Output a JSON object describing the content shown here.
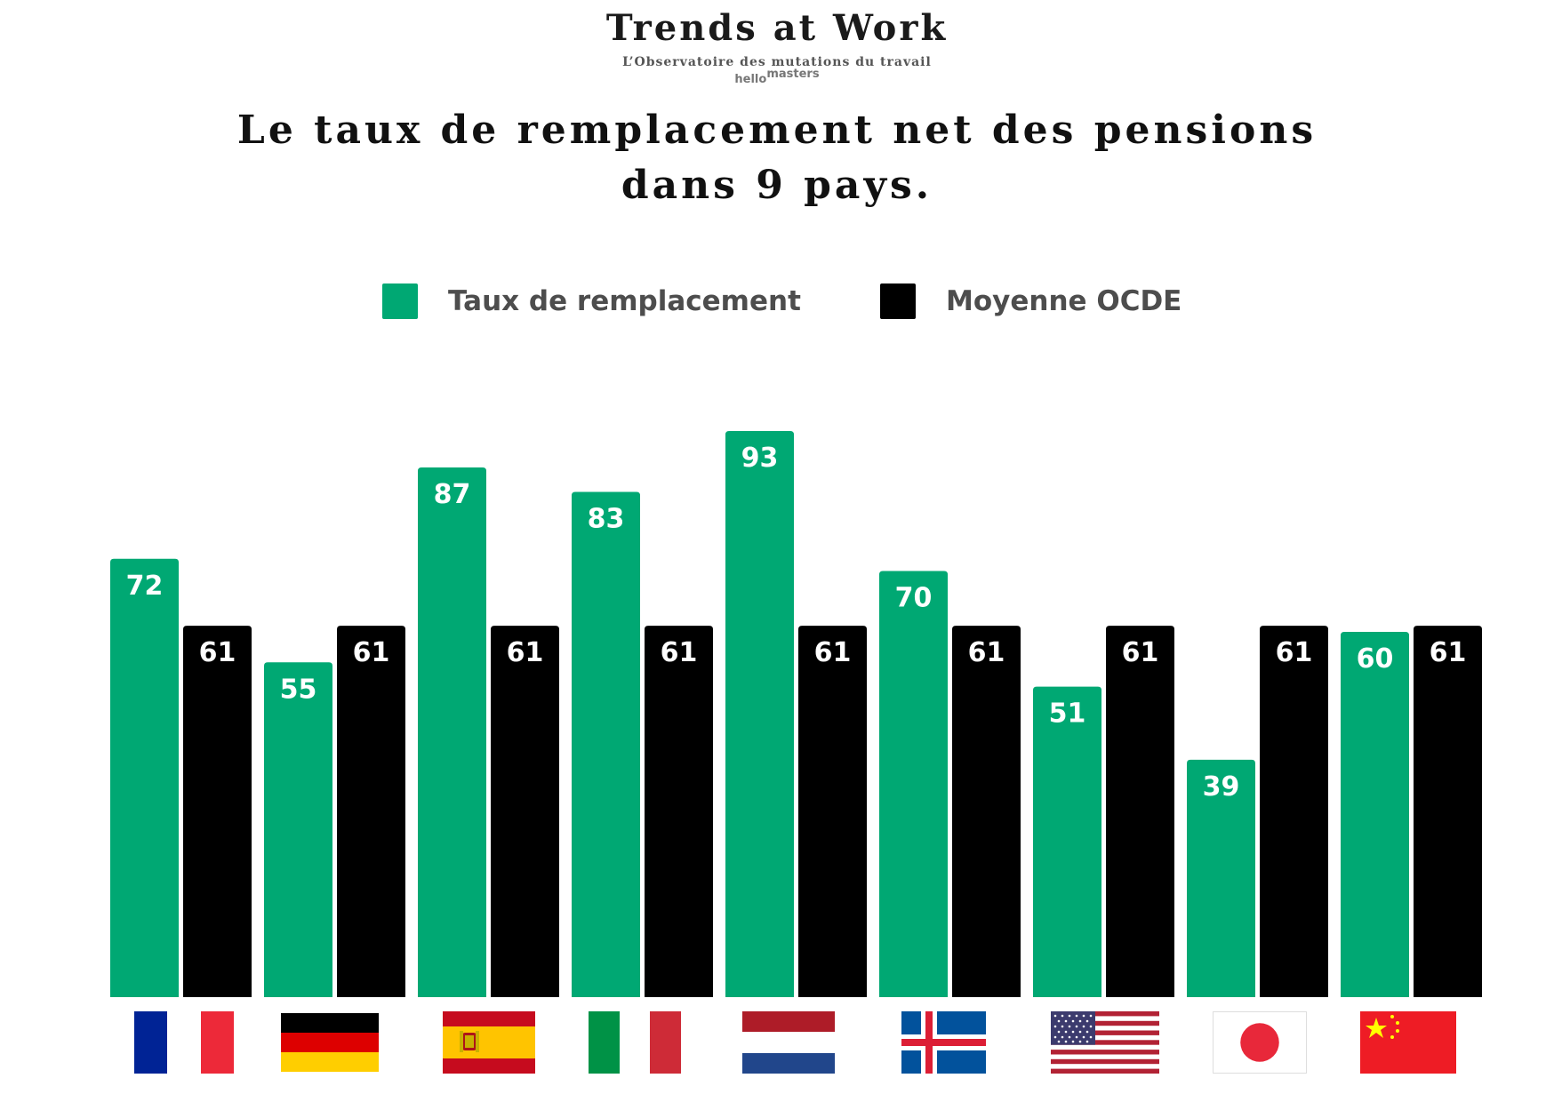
{
  "header": {
    "brand_title": "Trends at Work",
    "brand_subtitle": "L’Observatoire des mutations du travail",
    "logo_text_main": "hello",
    "logo_text_sup": "masters",
    "title_line1": "Le taux de remplacement net des pensions",
    "title_line2": "dans 9 pays."
  },
  "colors": {
    "green": "#00a873",
    "black": "#000000"
  },
  "chart_data": {
    "type": "bar",
    "title": "Le taux de remplacement net des pensions dans 9 pays.",
    "xlabel": "",
    "ylabel": "",
    "ylim": [
      0,
      100
    ],
    "grid": false,
    "legend_position": "top-center",
    "categories": [
      "france-flag",
      "germany-flag",
      "spain-flag",
      "italy-flag",
      "netherlands-flag",
      "iceland-flag",
      "usa-flag",
      "japan-flag",
      "china-flag"
    ],
    "series": [
      {
        "name": "Taux de remplacement",
        "color": "#00a873",
        "values": [
          72,
          55,
          87,
          83,
          93,
          70,
          51,
          39,
          60
        ]
      },
      {
        "name": "Moyenne OCDE",
        "color": "#000000",
        "values": [
          61,
          61,
          61,
          61,
          61,
          61,
          61,
          61,
          61
        ]
      }
    ]
  }
}
